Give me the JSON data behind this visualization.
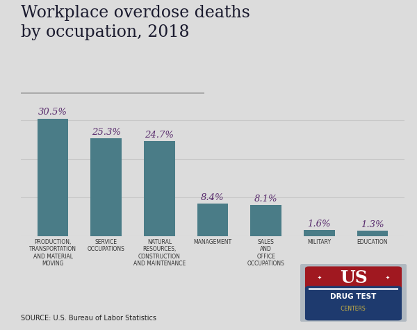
{
  "title": "Workplace overdose deaths\nby occupation, 2018",
  "categories": [
    "PRODUCTION,\nTRANSPORTATION\nAND MATERIAL\nMOVING",
    "SERVICE\nOCCUPATIONS",
    "NATURAL\nRESOURCES,\nCONSTRUCTION\nAND MAINTENANCE",
    "MANAGEMENT",
    "SALES\nAND\nOFFICE\nOCCUPATIONS",
    "MILITARY",
    "EDUCATION"
  ],
  "values": [
    30.5,
    25.3,
    24.7,
    8.4,
    8.1,
    1.6,
    1.3
  ],
  "labels": [
    "30.5%",
    "25.3%",
    "24.7%",
    "8.4%",
    "8.1%",
    "1.6%",
    "1.3%"
  ],
  "bar_color": "#4a7c87",
  "label_color": "#5a2d6e",
  "title_color": "#1a1a2e",
  "bg_color": "#dcdcdc",
  "source_text": "SOURCE: U.S. Bureau of Labor Statistics",
  "ylim": [
    0,
    36
  ],
  "grid_color": "#c8c8c8",
  "tick_label_color": "#333333",
  "separator_color": "#aaaaaa"
}
